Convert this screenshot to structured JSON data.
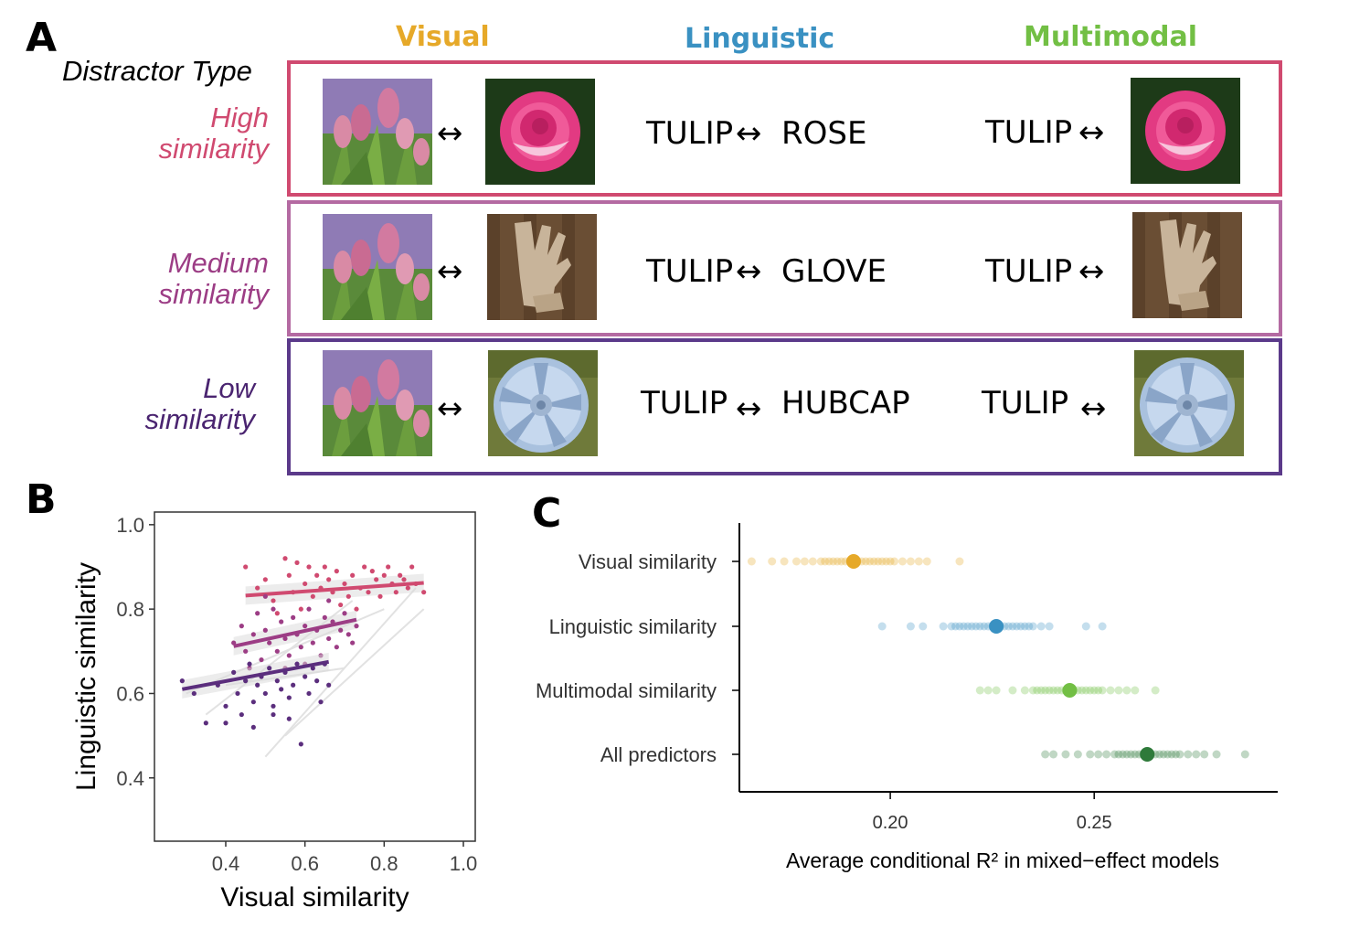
{
  "panel_a": {
    "letter": "A",
    "distractor_type_label": "Distractor Type",
    "columns": {
      "visual": "Visual",
      "linguistic": "Linguistic",
      "multimodal": "Multimodal"
    },
    "column_colors": {
      "visual": "#e6a929",
      "linguistic": "#3a91c2",
      "multimodal": "#72bf44"
    },
    "rows": [
      {
        "label_line1": "High",
        "label_line2": "similarity",
        "color": "#d04a70",
        "target_word": "TULIP",
        "distractor_word": "ROSE",
        "distractor_icon": "rose-image"
      },
      {
        "label_line1": "Medium",
        "label_line2": "similarity",
        "color": "#a8407e",
        "target_word": "TULIP",
        "distractor_word": "GLOVE",
        "distractor_icon": "glove-image"
      },
      {
        "label_line1": "Low",
        "label_line2": "similarity",
        "color": "#5b2e7d",
        "target_word": "TULIP",
        "distractor_word": "HUBCAP",
        "distractor_icon": "hubcap-image"
      }
    ],
    "arrow_glyph": "↔"
  },
  "panel_b": {
    "letter": "B",
    "chart_data": {
      "type": "scatter",
      "xlabel": "Visual similarity",
      "ylabel": "Linguistic similarity",
      "xlim": [
        0.22,
        1.03
      ],
      "ylim": [
        0.25,
        1.03
      ],
      "x_ticks": [
        "0.4",
        "0.6",
        "0.8",
        "1.0"
      ],
      "y_ticks": [
        "0.4",
        "0.6",
        "0.8",
        "1.0"
      ],
      "grid": false,
      "series": [
        {
          "color": "#d04a70",
          "fit": {
            "x": [
              0.45,
              0.9
            ],
            "y": [
              0.832,
              0.862
            ]
          },
          "points": [
            [
              0.45,
              0.9
            ],
            [
              0.48,
              0.85
            ],
            [
              0.5,
              0.87
            ],
            [
              0.52,
              0.82
            ],
            [
              0.55,
              0.92
            ],
            [
              0.56,
              0.88
            ],
            [
              0.57,
              0.84
            ],
            [
              0.58,
              0.91
            ],
            [
              0.6,
              0.86
            ],
            [
              0.61,
              0.9
            ],
            [
              0.62,
              0.83
            ],
            [
              0.63,
              0.88
            ],
            [
              0.64,
              0.85
            ],
            [
              0.65,
              0.9
            ],
            [
              0.66,
              0.87
            ],
            [
              0.67,
              0.84
            ],
            [
              0.68,
              0.89
            ],
            [
              0.7,
              0.86
            ],
            [
              0.71,
              0.83
            ],
            [
              0.72,
              0.88
            ],
            [
              0.74,
              0.85
            ],
            [
              0.75,
              0.9
            ],
            [
              0.76,
              0.84
            ],
            [
              0.78,
              0.87
            ],
            [
              0.79,
              0.83
            ],
            [
              0.8,
              0.88
            ],
            [
              0.82,
              0.86
            ],
            [
              0.83,
              0.84
            ],
            [
              0.85,
              0.87
            ],
            [
              0.86,
              0.85
            ],
            [
              0.87,
              0.9
            ],
            [
              0.88,
              0.86
            ],
            [
              0.9,
              0.84
            ],
            [
              0.53,
              0.79
            ],
            [
              0.59,
              0.8
            ],
            [
              0.69,
              0.81
            ],
            [
              0.73,
              0.8
            ],
            [
              0.77,
              0.89
            ],
            [
              0.81,
              0.9
            ],
            [
              0.84,
              0.88
            ]
          ]
        },
        {
          "color": "#9c3d85",
          "fit": {
            "x": [
              0.42,
              0.73
            ],
            "y": [
              0.712,
              0.775
            ]
          },
          "points": [
            [
              0.42,
              0.72
            ],
            [
              0.44,
              0.76
            ],
            [
              0.45,
              0.7
            ],
            [
              0.47,
              0.74
            ],
            [
              0.48,
              0.79
            ],
            [
              0.49,
              0.68
            ],
            [
              0.5,
              0.75
            ],
            [
              0.51,
              0.72
            ],
            [
              0.52,
              0.8
            ],
            [
              0.53,
              0.7
            ],
            [
              0.54,
              0.77
            ],
            [
              0.55,
              0.73
            ],
            [
              0.56,
              0.69
            ],
            [
              0.57,
              0.78
            ],
            [
              0.58,
              0.74
            ],
            [
              0.59,
              0.71
            ],
            [
              0.6,
              0.76
            ],
            [
              0.61,
              0.8
            ],
            [
              0.62,
              0.72
            ],
            [
              0.63,
              0.75
            ],
            [
              0.64,
              0.69
            ],
            [
              0.65,
              0.78
            ],
            [
              0.66,
              0.73
            ],
            [
              0.67,
              0.77
            ],
            [
              0.68,
              0.71
            ],
            [
              0.69,
              0.75
            ],
            [
              0.7,
              0.79
            ],
            [
              0.71,
              0.74
            ],
            [
              0.72,
              0.72
            ],
            [
              0.73,
              0.76
            ],
            [
              0.46,
              0.66
            ],
            [
              0.5,
              0.83
            ],
            [
              0.55,
              0.66
            ],
            [
              0.6,
              0.67
            ],
            [
              0.66,
              0.82
            ]
          ]
        },
        {
          "color": "#5b2e7d",
          "fit": {
            "x": [
              0.29,
              0.66
            ],
            "y": [
              0.61,
              0.675
            ]
          },
          "points": [
            [
              0.29,
              0.63
            ],
            [
              0.32,
              0.6
            ],
            [
              0.35,
              0.53
            ],
            [
              0.38,
              0.62
            ],
            [
              0.4,
              0.57
            ],
            [
              0.42,
              0.65
            ],
            [
              0.43,
              0.6
            ],
            [
              0.44,
              0.55
            ],
            [
              0.45,
              0.63
            ],
            [
              0.46,
              0.67
            ],
            [
              0.47,
              0.58
            ],
            [
              0.48,
              0.62
            ],
            [
              0.49,
              0.64
            ],
            [
              0.5,
              0.6
            ],
            [
              0.51,
              0.66
            ],
            [
              0.52,
              0.57
            ],
            [
              0.53,
              0.63
            ],
            [
              0.54,
              0.61
            ],
            [
              0.55,
              0.65
            ],
            [
              0.56,
              0.59
            ],
            [
              0.57,
              0.62
            ],
            [
              0.58,
              0.67
            ],
            [
              0.59,
              0.48
            ],
            [
              0.6,
              0.64
            ],
            [
              0.61,
              0.6
            ],
            [
              0.62,
              0.66
            ],
            [
              0.63,
              0.63
            ],
            [
              0.64,
              0.58
            ],
            [
              0.65,
              0.67
            ],
            [
              0.66,
              0.62
            ],
            [
              0.4,
              0.53
            ],
            [
              0.47,
              0.52
            ],
            [
              0.52,
              0.55
            ],
            [
              0.56,
              0.54
            ]
          ]
        }
      ]
    }
  },
  "panel_c": {
    "letter": "C",
    "chart_data": {
      "type": "scatter",
      "xlabel": "Average conditional R² in mixed−effect models",
      "xlim": [
        0.163,
        0.295
      ],
      "x_ticks": [
        0.2,
        0.25
      ],
      "x_tick_labels": [
        "0.20",
        "0.25"
      ],
      "categories": [
        "Visual similarity",
        "Linguistic similarity",
        "Multimodal similarity",
        "All predictors"
      ],
      "series": [
        {
          "name": "Visual similarity",
          "color": "#e6a929",
          "mean": 0.191,
          "points": [
            0.166,
            0.171,
            0.174,
            0.177,
            0.179,
            0.181,
            0.183,
            0.184,
            0.185,
            0.186,
            0.187,
            0.188,
            0.189,
            0.19,
            0.191,
            0.192,
            0.193,
            0.194,
            0.195,
            0.196,
            0.197,
            0.198,
            0.199,
            0.2,
            0.201,
            0.203,
            0.205,
            0.207,
            0.209,
            0.217
          ]
        },
        {
          "name": "Linguistic similarity",
          "color": "#3a91c2",
          "mean": 0.226,
          "points": [
            0.198,
            0.205,
            0.208,
            0.213,
            0.215,
            0.216,
            0.217,
            0.218,
            0.219,
            0.22,
            0.221,
            0.222,
            0.223,
            0.224,
            0.225,
            0.226,
            0.227,
            0.228,
            0.229,
            0.23,
            0.231,
            0.232,
            0.233,
            0.234,
            0.235,
            0.237,
            0.239,
            0.248,
            0.252
          ]
        },
        {
          "name": "Multimodal similarity",
          "color": "#72bf44",
          "mean": 0.244,
          "points": [
            0.222,
            0.224,
            0.226,
            0.23,
            0.233,
            0.235,
            0.236,
            0.237,
            0.238,
            0.239,
            0.24,
            0.241,
            0.242,
            0.243,
            0.244,
            0.245,
            0.246,
            0.247,
            0.248,
            0.249,
            0.25,
            0.251,
            0.252,
            0.254,
            0.256,
            0.258,
            0.26,
            0.265
          ]
        },
        {
          "name": "All predictors",
          "color": "#2e7a3a",
          "mean": 0.263,
          "points": [
            0.238,
            0.24,
            0.243,
            0.246,
            0.249,
            0.251,
            0.253,
            0.255,
            0.256,
            0.257,
            0.258,
            0.259,
            0.26,
            0.261,
            0.262,
            0.263,
            0.264,
            0.265,
            0.266,
            0.267,
            0.268,
            0.269,
            0.27,
            0.271,
            0.273,
            0.275,
            0.277,
            0.28,
            0.287
          ]
        }
      ]
    }
  }
}
